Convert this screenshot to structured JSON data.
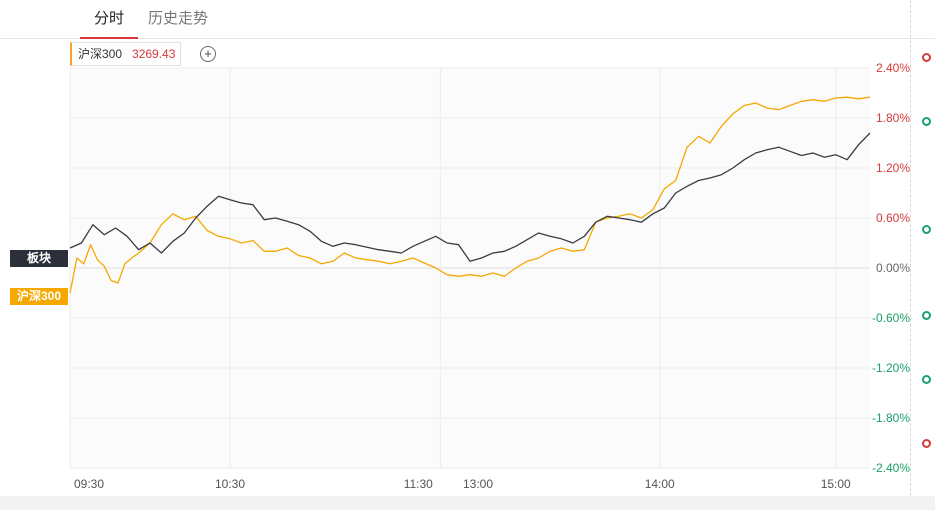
{
  "tabs": {
    "active": "分时",
    "history": "历史走势"
  },
  "legend": {
    "name": "沪深300",
    "value": "3269.43",
    "value_color": "#d63b3b"
  },
  "add_button": {
    "label": "+"
  },
  "badges": {
    "sector": "板块",
    "index": "沪深300"
  },
  "colors": {
    "sector_line": "#3a3a44",
    "index_line": "#f5a800",
    "up": "#d63b3b",
    "down": "#1aa06a",
    "flat": "#666666"
  },
  "chart_data": {
    "type": "line",
    "title": "",
    "xlabel": "",
    "ylabel": "",
    "y_unit": "%",
    "ylim": [
      -2.4,
      2.4
    ],
    "y_ticks": [
      "2.40%",
      "1.80%",
      "1.20%",
      "0.60%",
      "0.00%",
      "-0.60%",
      "-1.20%",
      "-1.80%",
      "-2.40%"
    ],
    "x_ticks": [
      "09:30",
      "10:30",
      "11:30",
      "13:00",
      "14:00",
      "15:00"
    ],
    "session_minutes": 240,
    "grid": true,
    "legend": "top-left",
    "series": [
      {
        "name": "板块",
        "color": "#3a3a44",
        "points": [
          [
            0,
            0.24
          ],
          [
            5,
            0.3
          ],
          [
            10,
            0.52
          ],
          [
            15,
            0.4
          ],
          [
            20,
            0.48
          ],
          [
            25,
            0.38
          ],
          [
            30,
            0.22
          ],
          [
            35,
            0.3
          ],
          [
            40,
            0.18
          ],
          [
            45,
            0.32
          ],
          [
            50,
            0.42
          ],
          [
            55,
            0.6
          ],
          [
            60,
            0.74
          ],
          [
            65,
            0.86
          ],
          [
            70,
            0.82
          ],
          [
            75,
            0.78
          ],
          [
            80,
            0.76
          ],
          [
            85,
            0.58
          ],
          [
            90,
            0.6
          ],
          [
            95,
            0.56
          ],
          [
            100,
            0.52
          ],
          [
            105,
            0.44
          ],
          [
            110,
            0.32
          ],
          [
            115,
            0.26
          ],
          [
            120,
            0.3
          ],
          [
            125,
            0.28
          ],
          [
            130,
            0.25
          ],
          [
            135,
            0.22
          ],
          [
            140,
            0.2
          ],
          [
            145,
            0.18
          ],
          [
            150,
            0.26
          ],
          [
            155,
            0.32
          ],
          [
            160,
            0.38
          ],
          [
            165,
            0.3
          ],
          [
            170,
            0.28
          ],
          [
            175,
            0.08
          ],
          [
            180,
            0.12
          ],
          [
            185,
            0.18
          ],
          [
            190,
            0.2
          ],
          [
            195,
            0.26
          ],
          [
            200,
            0.34
          ],
          [
            205,
            0.42
          ],
          [
            210,
            0.38
          ],
          [
            215,
            0.35
          ],
          [
            220,
            0.3
          ],
          [
            225,
            0.38
          ],
          [
            230,
            0.55
          ],
          [
            235,
            0.62
          ],
          [
            240,
            0.6
          ],
          [
            245,
            0.58
          ],
          [
            250,
            0.55
          ],
          [
            255,
            0.65
          ],
          [
            260,
            0.72
          ],
          [
            265,
            0.9
          ],
          [
            270,
            0.98
          ],
          [
            275,
            1.05
          ],
          [
            280,
            1.08
          ],
          [
            285,
            1.12
          ],
          [
            290,
            1.2
          ],
          [
            295,
            1.3
          ],
          [
            300,
            1.38
          ],
          [
            305,
            1.42
          ],
          [
            310,
            1.45
          ],
          [
            315,
            1.4
          ],
          [
            320,
            1.35
          ],
          [
            325,
            1.38
          ],
          [
            330,
            1.33
          ],
          [
            335,
            1.36
          ],
          [
            340,
            1.3
          ],
          [
            345,
            1.48
          ],
          [
            350,
            1.62
          ]
        ]
      },
      {
        "name": "沪深300",
        "color": "#f5a800",
        "points": [
          [
            0,
            -0.3
          ],
          [
            3,
            0.12
          ],
          [
            6,
            0.05
          ],
          [
            9,
            0.28
          ],
          [
            12,
            0.1
          ],
          [
            15,
            0.02
          ],
          [
            18,
            -0.15
          ],
          [
            21,
            -0.18
          ],
          [
            24,
            0.05
          ],
          [
            27,
            0.12
          ],
          [
            30,
            0.18
          ],
          [
            35,
            0.3
          ],
          [
            40,
            0.52
          ],
          [
            45,
            0.65
          ],
          [
            50,
            0.58
          ],
          [
            55,
            0.62
          ],
          [
            60,
            0.45
          ],
          [
            65,
            0.38
          ],
          [
            70,
            0.35
          ],
          [
            75,
            0.3
          ],
          [
            80,
            0.33
          ],
          [
            85,
            0.2
          ],
          [
            90,
            0.2
          ],
          [
            95,
            0.24
          ],
          [
            100,
            0.15
          ],
          [
            105,
            0.12
          ],
          [
            110,
            0.05
          ],
          [
            115,
            0.08
          ],
          [
            120,
            0.18
          ],
          [
            125,
            0.12
          ],
          [
            130,
            0.1
          ],
          [
            135,
            0.08
          ],
          [
            140,
            0.05
          ],
          [
            145,
            0.08
          ],
          [
            150,
            0.12
          ],
          [
            155,
            0.06
          ],
          [
            160,
            0.0
          ],
          [
            165,
            -0.08
          ],
          [
            170,
            -0.1
          ],
          [
            175,
            -0.08
          ],
          [
            180,
            -0.1
          ],
          [
            185,
            -0.06
          ],
          [
            190,
            -0.1
          ],
          [
            195,
            0.0
          ],
          [
            200,
            0.08
          ],
          [
            205,
            0.12
          ],
          [
            210,
            0.2
          ],
          [
            215,
            0.24
          ],
          [
            220,
            0.2
          ],
          [
            225,
            0.22
          ],
          [
            230,
            0.55
          ],
          [
            235,
            0.6
          ],
          [
            240,
            0.62
          ],
          [
            245,
            0.65
          ],
          [
            250,
            0.6
          ],
          [
            255,
            0.7
          ],
          [
            260,
            0.95
          ],
          [
            265,
            1.05
          ],
          [
            270,
            1.45
          ],
          [
            275,
            1.58
          ],
          [
            280,
            1.5
          ],
          [
            285,
            1.7
          ],
          [
            290,
            1.85
          ],
          [
            295,
            1.95
          ],
          [
            300,
            1.98
          ],
          [
            305,
            1.92
          ],
          [
            310,
            1.9
          ],
          [
            315,
            1.95
          ],
          [
            320,
            2.0
          ],
          [
            325,
            2.02
          ],
          [
            330,
            2.0
          ],
          [
            335,
            2.04
          ],
          [
            340,
            2.05
          ],
          [
            345,
            2.03
          ],
          [
            350,
            2.05
          ]
        ]
      }
    ]
  },
  "side_markers": [
    {
      "name": "marker-1",
      "status": "up"
    },
    {
      "name": "marker-2",
      "status": "down"
    },
    {
      "name": "marker-3",
      "status": "down"
    },
    {
      "name": "marker-4",
      "status": "down"
    },
    {
      "name": "marker-5",
      "status": "down"
    },
    {
      "name": "marker-6",
      "status": "up"
    }
  ]
}
